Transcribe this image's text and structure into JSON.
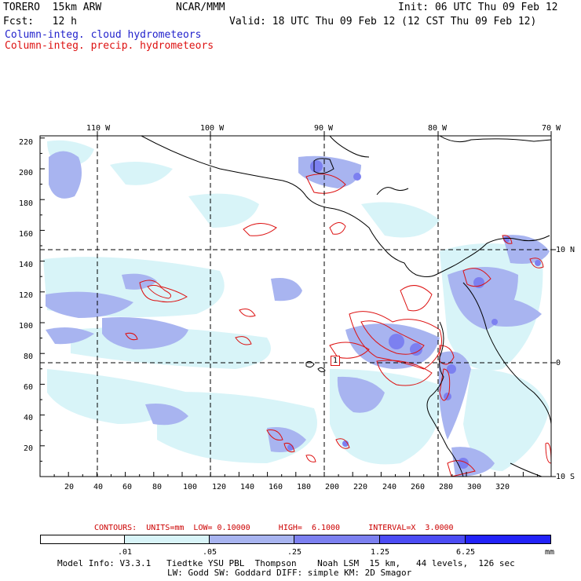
{
  "header": {
    "model": "TORERO  15km ARW",
    "center": "NCAR/MMM",
    "init": "Init: 06 UTC Thu 09 Feb 12",
    "fcst": "Fcst:   12 h",
    "valid": "Valid: 18 UTC Thu 09 Feb 12 (12 CST Thu 09 Feb 12)",
    "field_cloud": "Column-integ. cloud hydrometeors",
    "field_precip": "Column-integ. precip. hydrometeors",
    "cloud_color": "#2222cc",
    "precip_color": "#dd1111"
  },
  "axes": {
    "top_lon": [
      "110 W",
      "100 W",
      "90 W",
      "80 W",
      "70 W"
    ],
    "right_lat": [
      "10 N",
      "0",
      "10 S"
    ],
    "left_y": [
      "220",
      "200",
      "180",
      "160",
      "140",
      "120",
      "100",
      "80",
      "60",
      "40",
      "20"
    ],
    "bottom_x": [
      "20",
      "40",
      "60",
      "80",
      "100",
      "120",
      "140",
      "160",
      "180",
      "200",
      "220",
      "240",
      "260",
      "280",
      "300",
      "320"
    ]
  },
  "contours": {
    "label": "CONTOURS:  UNITS=mm  LOW= 0.10000      HIGH=  6.1000      INTERVAL=X  3.0000",
    "box_label": "1",
    "color": "#cc0000"
  },
  "legend": {
    "ticks": [
      ".01",
      ".05",
      ".25",
      "1.25",
      "6.25"
    ],
    "unit": "mm",
    "colors": [
      "#ffffff",
      "#d8f4f8",
      "#a8b4f0",
      "#7c80f0",
      "#4c4cf4",
      "#2222f8"
    ]
  },
  "footer": {
    "line1": "Model Info: V3.3.1   Tiedtke YSU PBL  Thompson    Noah LSM  15 km,   44 levels,  126 sec",
    "line2": "LW: Godd SW: Goddard DIFF: simple KM: 2D Smagor"
  }
}
